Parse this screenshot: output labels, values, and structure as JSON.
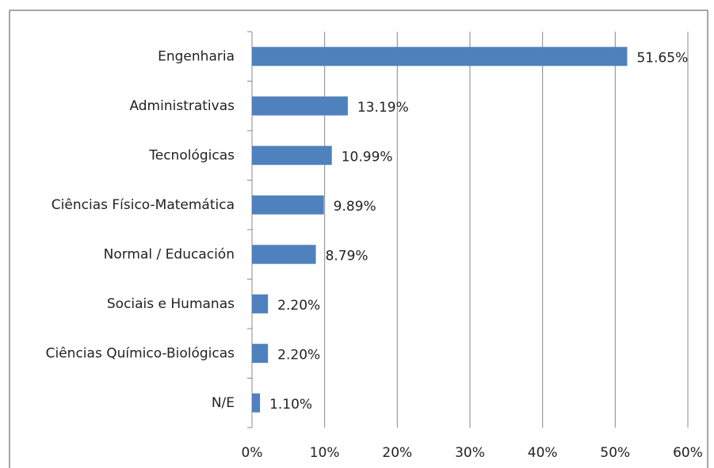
{
  "chart_data": {
    "type": "bar",
    "orientation": "horizontal",
    "categories": [
      "Engenharia",
      "Administrativas",
      "Tecnológicas",
      "Ciências Físico-Matemática",
      "Normal / Educación",
      "Sociais e Humanas",
      "Ciências Químico-Biológicas",
      "N/E"
    ],
    "values": [
      51.65,
      13.19,
      10.99,
      9.89,
      8.79,
      2.2,
      2.2,
      1.1
    ],
    "value_labels": [
      "51.65%",
      "13.19%",
      "10.99%",
      "9.89%",
      "8.79%",
      "2.20%",
      "2.20%",
      "1.10%"
    ],
    "color": "#4f81bd",
    "xlim": [
      0,
      60
    ],
    "xticks": [
      {
        "value": 0,
        "label": "0%"
      },
      {
        "value": 10,
        "label": "10%"
      },
      {
        "value": 20,
        "label": "20%"
      },
      {
        "value": 30,
        "label": "30%"
      },
      {
        "value": 40,
        "label": "40%"
      },
      {
        "value": 50,
        "label": "50%"
      },
      {
        "value": 60,
        "label": "60%"
      }
    ],
    "grid": true
  }
}
